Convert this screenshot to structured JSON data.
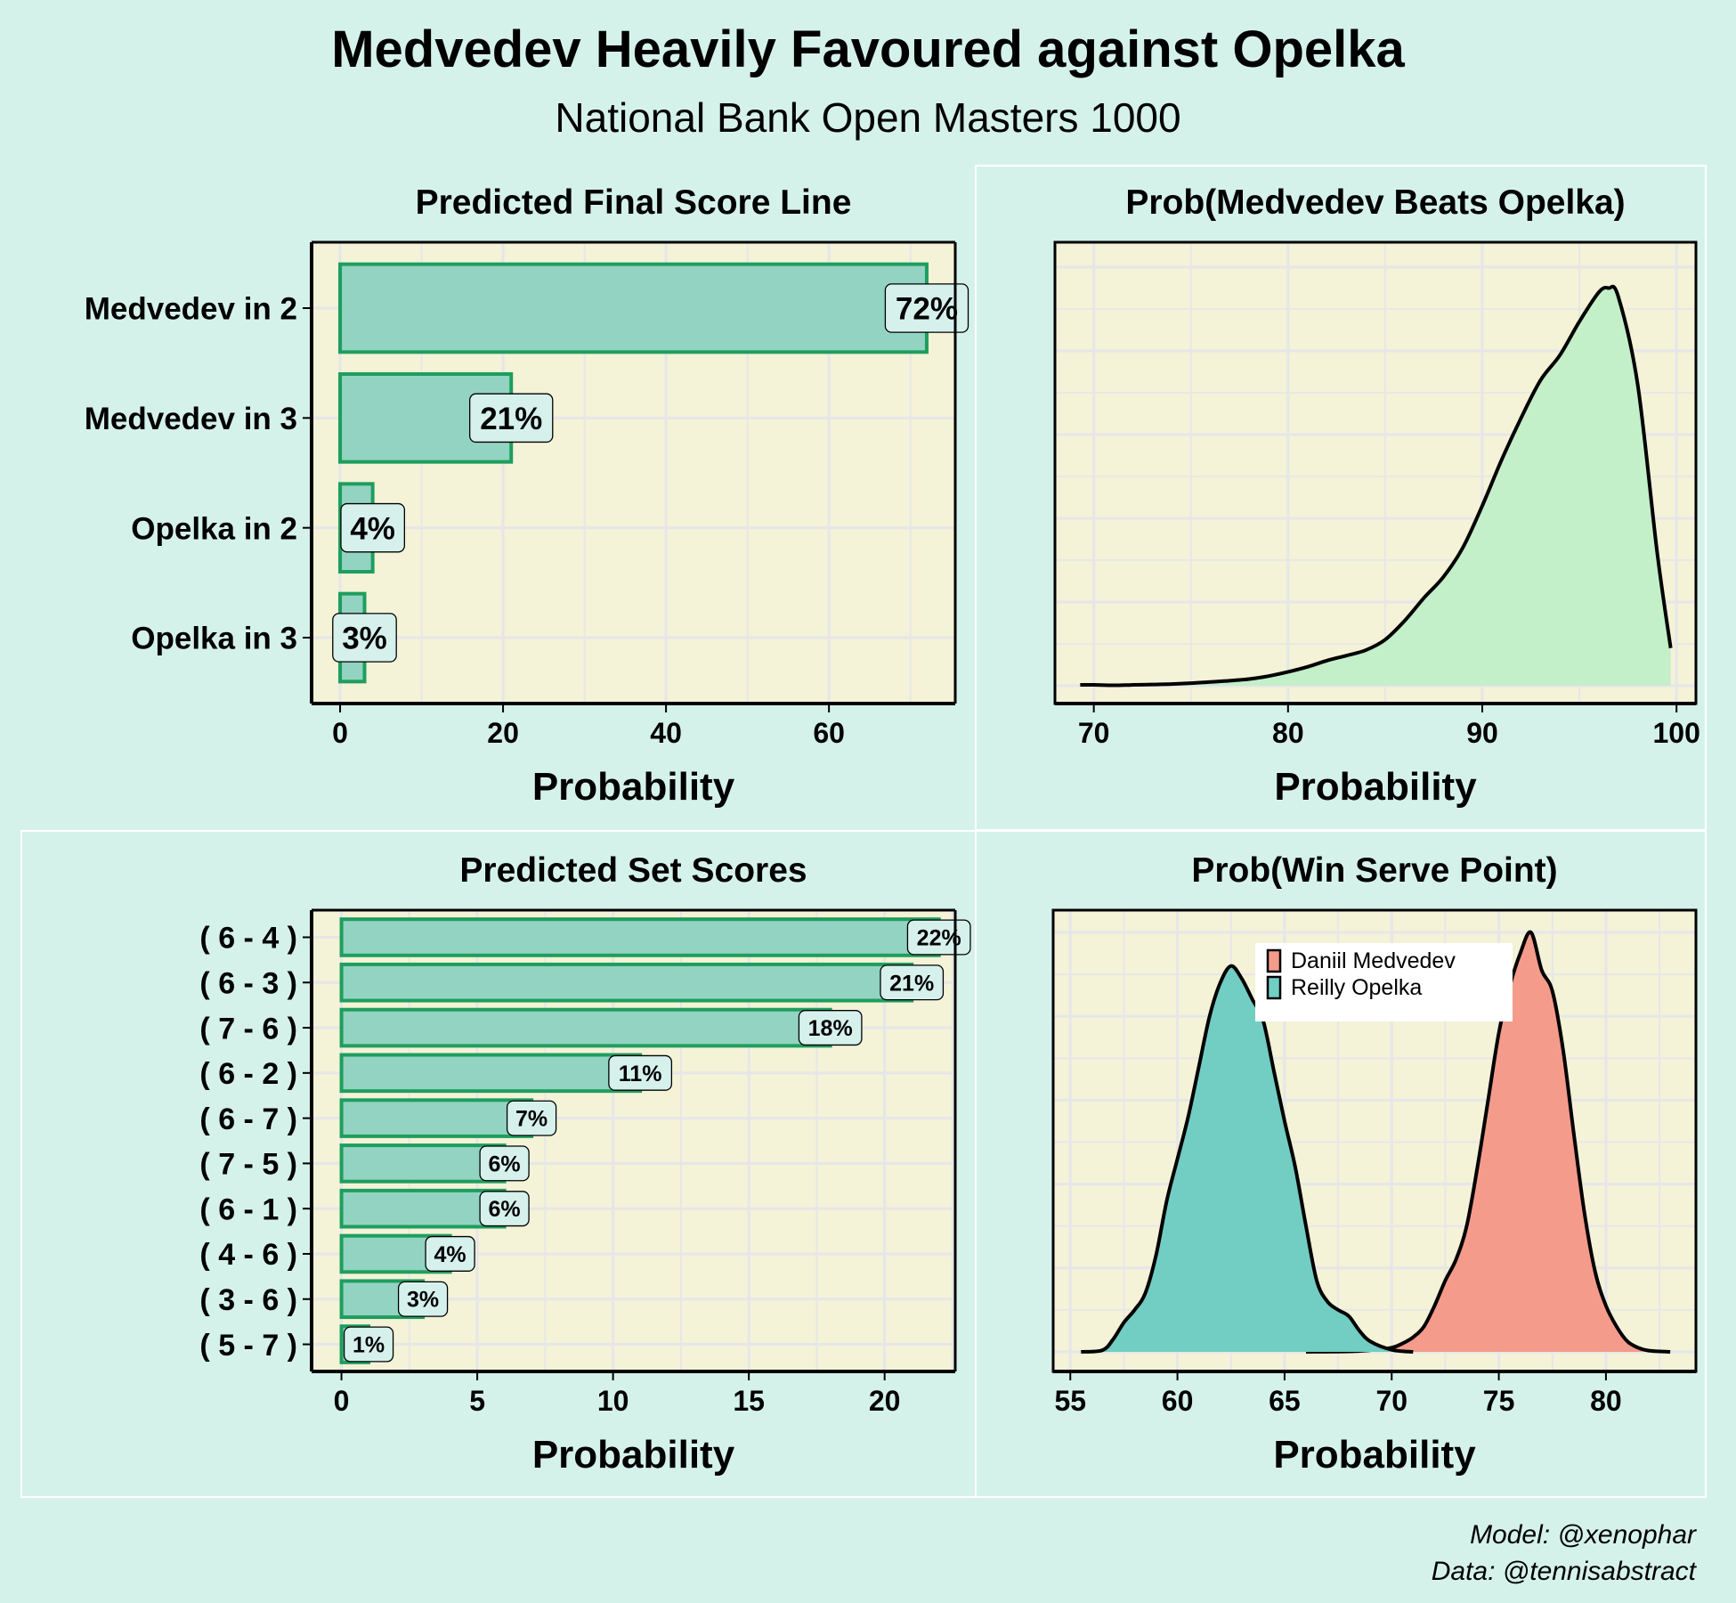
{
  "title": "Medvedev Heavily Favoured against Opelka",
  "subtitle": "National Bank Open Masters 1000",
  "caption": {
    "line1": "Model: @xenophar",
    "line2": "Data: @tennisabstract"
  },
  "colors": {
    "page_bg": "#d5f2ea",
    "panel_bg": "#f4f2d7",
    "grid": "#e6e6e9",
    "bar_fill": "#93d3c2",
    "bar_stroke": "#1e9e5e",
    "label_fill": "#d6f1ec",
    "density_fill": "#c3efc9",
    "medvedev_fill": "#f49b8b",
    "opelka_fill": "#72cdc3"
  },
  "chart_data": [
    {
      "id": "final-score",
      "type": "bar",
      "orientation": "horizontal",
      "title": "Predicted Final Score Line",
      "xlabel": "Probability",
      "ylabel": "",
      "categories": [
        "Medvedev in 2",
        "Medvedev in 3",
        "Opelka in 2",
        "Opelka in 3"
      ],
      "values": [
        72,
        21,
        4,
        3
      ],
      "labels": [
        "72%",
        "21%",
        "4%",
        "3%"
      ],
      "xlim": [
        -3.5,
        75.5
      ],
      "xticks": [
        0,
        20,
        40,
        60
      ],
      "grid": true
    },
    {
      "id": "win-prob",
      "type": "area",
      "title": "Prob(Medvedev Beats Opelka)",
      "xlabel": "Probability",
      "ylabel": "",
      "x": [
        69.3,
        70,
        71,
        72,
        73,
        74,
        75,
        76,
        77,
        78,
        79,
        80,
        81,
        82,
        83,
        84,
        85,
        86,
        87,
        88,
        89,
        90,
        91,
        92,
        93,
        94,
        95,
        96,
        96.5,
        97,
        98,
        99,
        99.7
      ],
      "y": [
        0.002,
        0.002,
        0.001,
        0.002,
        0.003,
        0.004,
        0.006,
        0.009,
        0.012,
        0.016,
        0.023,
        0.033,
        0.045,
        0.06,
        0.072,
        0.085,
        0.11,
        0.155,
        0.21,
        0.26,
        0.33,
        0.43,
        0.54,
        0.64,
        0.73,
        0.79,
        0.87,
        0.94,
        0.95,
        0.93,
        0.72,
        0.32,
        0.09
      ],
      "xlim": [
        68,
        101
      ],
      "xticks": [
        70,
        80,
        90,
        100
      ],
      "ylim": [
        0,
        1
      ],
      "grid": true
    },
    {
      "id": "set-scores",
      "type": "bar",
      "orientation": "horizontal",
      "title": "Predicted Set Scores",
      "xlabel": "Probability",
      "ylabel": "",
      "categories": [
        "( 6 - 4 )",
        "( 6 - 3 )",
        "( 7 - 6 )",
        "( 6 - 2 )",
        "( 6 - 7 )",
        "( 7 - 5 )",
        "( 6 - 1 )",
        "( 4 - 6 )",
        "( 3 - 6 )",
        "( 5 - 7 )"
      ],
      "values": [
        22,
        21,
        18,
        11,
        7,
        6,
        6,
        4,
        3,
        1
      ],
      "labels": [
        "22%",
        "21%",
        "18%",
        "11%",
        "7%",
        "6%",
        "6%",
        "4%",
        "3%",
        "1%"
      ],
      "xlim": [
        -1.1,
        22.6
      ],
      "xticks": [
        0,
        5,
        10,
        15,
        20
      ],
      "grid": true
    },
    {
      "id": "serve-point",
      "type": "area",
      "title": "Prob(Win Serve Point)",
      "xlabel": "Probability",
      "ylabel": "",
      "xlim": [
        54.2,
        84.2
      ],
      "xticks": [
        55,
        60,
        65,
        70,
        75,
        80
      ],
      "ylim": [
        0,
        1
      ],
      "legend_position": "top-center",
      "series": [
        {
          "name": "Daniil Medvedev",
          "x": [
            66,
            68,
            69,
            70,
            70.5,
            71,
            71.5,
            72,
            72.5,
            73,
            73.5,
            74,
            74.5,
            75,
            75.5,
            76,
            76.5,
            77,
            77.5,
            78,
            78.5,
            79,
            79.5,
            80,
            80.5,
            81,
            81.5,
            82,
            83
          ],
          "y": [
            0,
            0.001,
            0.004,
            0.01,
            0.02,
            0.035,
            0.06,
            0.11,
            0.17,
            0.22,
            0.3,
            0.44,
            0.6,
            0.76,
            0.87,
            0.95,
            1.0,
            0.91,
            0.86,
            0.72,
            0.52,
            0.33,
            0.19,
            0.11,
            0.06,
            0.025,
            0.01,
            0.003,
            0
          ]
        },
        {
          "name": "Reilly Opelka",
          "x": [
            55.5,
            56.5,
            57,
            57.5,
            58,
            58.5,
            59,
            59.5,
            60,
            60.5,
            61,
            61.5,
            62,
            62.5,
            63,
            63.5,
            64,
            64.5,
            65,
            65.5,
            66,
            66.5,
            67,
            67.5,
            68,
            68.5,
            69,
            70,
            71
          ],
          "y": [
            0,
            0.004,
            0.03,
            0.07,
            0.1,
            0.14,
            0.23,
            0.36,
            0.46,
            0.56,
            0.68,
            0.8,
            0.88,
            0.92,
            0.89,
            0.84,
            0.79,
            0.67,
            0.55,
            0.44,
            0.3,
            0.17,
            0.12,
            0.1,
            0.085,
            0.05,
            0.025,
            0.005,
            0
          ]
        }
      ]
    }
  ]
}
